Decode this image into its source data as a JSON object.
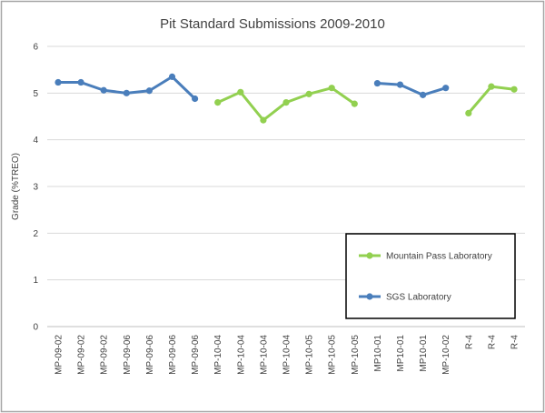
{
  "chart_data": {
    "type": "line",
    "title": "Pit Standard Submissions 2009-2010",
    "xlabel": "",
    "ylabel": "Grade (%TREO)",
    "ylim": [
      0,
      6
    ],
    "yticks": [
      "0",
      "1",
      "2",
      "3",
      "4",
      "5",
      "6"
    ],
    "grid": true,
    "legend_position": "bottom-right",
    "categories": [
      "MP-09-02",
      "MP-09-02",
      "MP-09-02",
      "MP-09-06",
      "MP-09-06",
      "MP-09-06",
      "MP-09-06",
      "MP-10-04",
      "MP-10-04",
      "MP-10-04",
      "MP-10-04",
      "MP-10-05",
      "MP-10-05",
      "MP-10-05",
      "MP10-01",
      "MP10-01",
      "MP10-01",
      "MP-10-02",
      "R-4",
      "R-4",
      "R-4"
    ],
    "series": [
      {
        "name": "Mountain Pass Laboratory",
        "color": "#92d050",
        "values": [
          null,
          null,
          null,
          null,
          null,
          null,
          null,
          4.8,
          5.02,
          4.42,
          4.8,
          4.98,
          5.11,
          4.77,
          null,
          null,
          null,
          null,
          4.57,
          5.14,
          5.08
        ]
      },
      {
        "name": "SGS Laboratory",
        "color": "#4a7ebb",
        "values": [
          5.23,
          5.23,
          5.06,
          5.0,
          5.05,
          5.35,
          4.88,
          null,
          null,
          null,
          null,
          null,
          null,
          null,
          5.21,
          5.18,
          4.96,
          5.11,
          null,
          null,
          null
        ]
      }
    ]
  }
}
